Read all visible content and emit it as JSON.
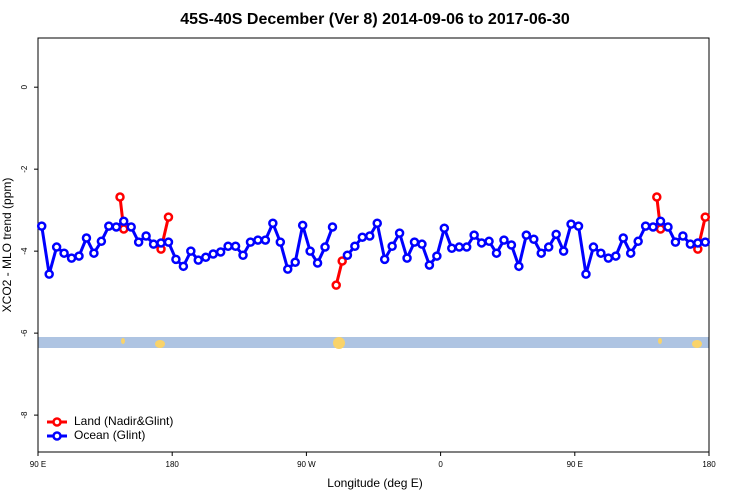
{
  "chart_data": {
    "type": "line",
    "title": "45S-40S December (Ver 8)   2014-09-06 to 2017-06-30",
    "x_label": "Longitude (deg E)",
    "y_label": "XCO2 - MLO trend (ppm)",
    "xlim": [
      90,
      540
    ],
    "ylim": [
      -8.9,
      1.2
    ],
    "xticks": [
      {
        "value": 90,
        "label": "90 E"
      },
      {
        "value": 180,
        "label": "180"
      },
      {
        "value": 270,
        "label": "90 W"
      },
      {
        "value": 360,
        "label": "0"
      },
      {
        "value": 450,
        "label": "90 E"
      },
      {
        "value": 540,
        "label": "180"
      }
    ],
    "yticks": [
      -8,
      -6,
      -4,
      -2,
      0
    ],
    "legend": "bottom-left",
    "series": [
      {
        "name": "Land (Nadir&Glint)",
        "color": "#ff0000",
        "x": [
          145,
          147.5,
          null,
          172.5,
          177.5,
          null,
          290,
          294,
          null,
          505,
          507.5,
          null,
          532.5,
          537.5
        ],
        "values": [
          -2.68,
          -3.46,
          null,
          -3.95,
          -3.17,
          null,
          -4.83,
          -4.24,
          null,
          -2.68,
          -3.46,
          null,
          -3.95,
          -3.17
        ]
      },
      {
        "name": "Ocean (Glint)",
        "color": "#0000ff",
        "x": [
          92.5,
          97.5,
          102.5,
          107.5,
          112.5,
          117.5,
          122.5,
          127.5,
          132.5,
          137.5,
          142.5,
          147.5,
          152.5,
          157.5,
          162.5,
          167.5,
          172.5,
          177.5,
          182.5,
          187.5,
          192.5,
          197.5,
          202.5,
          207.5,
          212.5,
          217.5,
          222.5,
          227.5,
          232.5,
          237.5,
          242.5,
          247.5,
          252.5,
          257.5,
          262.5,
          267.5,
          272.5,
          277.5,
          282.5,
          287.5,
          292.5,
          297.5,
          302.5,
          307.5,
          312.5,
          317.5,
          322.5,
          327.5,
          332.5,
          337.5,
          342.5,
          347.5,
          352.5,
          357.5,
          362.5,
          367.5,
          372.5,
          377.5,
          382.5,
          387.5,
          392.5,
          397.5,
          402.5,
          407.5,
          412.5,
          417.5,
          422.5,
          427.5,
          432.5,
          437.5,
          442.5,
          447.5,
          452.5,
          457.5,
          462.5,
          467.5,
          472.5,
          477.5,
          482.5,
          487.5,
          492.5,
          497.5,
          502.5,
          507.5,
          512.5,
          517.5,
          522.5,
          527.5,
          532.5,
          537.5
        ],
        "values": [
          -3.39,
          -4.56,
          -3.9,
          -4.05,
          -4.17,
          -4.12,
          -3.68,
          -4.05,
          -3.76,
          -3.39,
          -3.41,
          -3.27,
          -3.41,
          -3.78,
          -3.63,
          -3.83,
          -3.8,
          -3.78,
          -4.2,
          -4.37,
          -4.0,
          -4.22,
          -4.15,
          -4.07,
          -4.02,
          -3.88,
          -3.88,
          -4.1,
          -3.78,
          -3.73,
          -3.73,
          -3.32,
          -3.78,
          -4.44,
          -4.27,
          -3.37,
          -4.0,
          -4.29,
          -3.9,
          -3.41,
          null,
          -4.1,
          -3.88,
          -3.66,
          -3.63,
          -3.32,
          -4.2,
          -3.88,
          -3.56,
          -4.17,
          -3.78,
          -3.83,
          -4.34,
          -4.12,
          -3.44,
          -3.93,
          -3.9,
          -3.9,
          -3.61,
          -3.8,
          -3.76,
          -4.05,
          -3.73,
          -3.85,
          -4.37,
          -3.61,
          -3.71,
          -4.05,
          -3.9,
          -3.59,
          -4.0,
          -3.34,
          -3.39,
          -4.56,
          -3.9,
          -4.05,
          -4.17,
          -4.12,
          -3.68,
          -4.05,
          -3.76,
          -3.39,
          -3.41,
          -3.27,
          -3.41,
          -3.78,
          -3.63,
          -3.83,
          -3.8,
          -3.78
        ]
      }
    ]
  }
}
